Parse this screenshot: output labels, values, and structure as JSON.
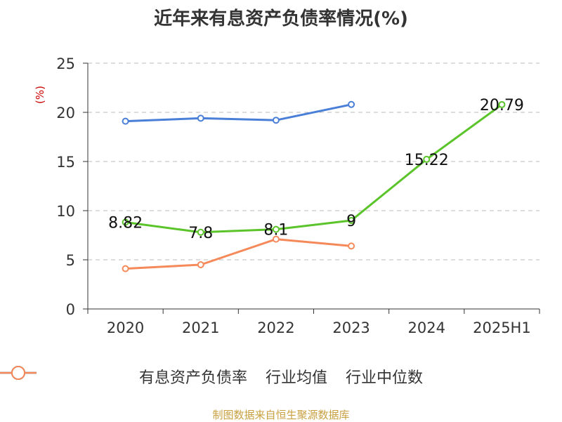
{
  "chart_data": {
    "type": "line",
    "title": "近年来有息资产负债率情况(%)",
    "unit_label": "(%)",
    "categories": [
      "2020",
      "2021",
      "2022",
      "2023",
      "2024",
      "2025H1"
    ],
    "ylim": [
      0,
      25
    ],
    "yticks": [
      0,
      5,
      10,
      15,
      20,
      25
    ],
    "grid": true,
    "legend_position": "bottom",
    "series": [
      {
        "name": "有息资产负债率",
        "color": "#5bc42b",
        "values": [
          8.82,
          7.8,
          8.1,
          9,
          15.22,
          20.79
        ],
        "labels": [
          "8.82",
          "7.8",
          "8.1",
          "9",
          "15.22",
          "20.79"
        ]
      },
      {
        "name": "行业均值",
        "color": "#4a7fd8",
        "values": [
          19.1,
          19.4,
          19.2,
          20.8,
          null,
          null
        ]
      },
      {
        "name": "行业中位数",
        "color": "#f5895a",
        "values": [
          4.1,
          4.5,
          7.1,
          6.4,
          null,
          null
        ]
      }
    ]
  },
  "colors": {
    "title": "#333333",
    "unit": "#cc0000",
    "source": "#c8a040",
    "axis": "#333333",
    "grid": "#bbbbbb"
  },
  "source_text": "制图数据来自恒生聚源数据库"
}
